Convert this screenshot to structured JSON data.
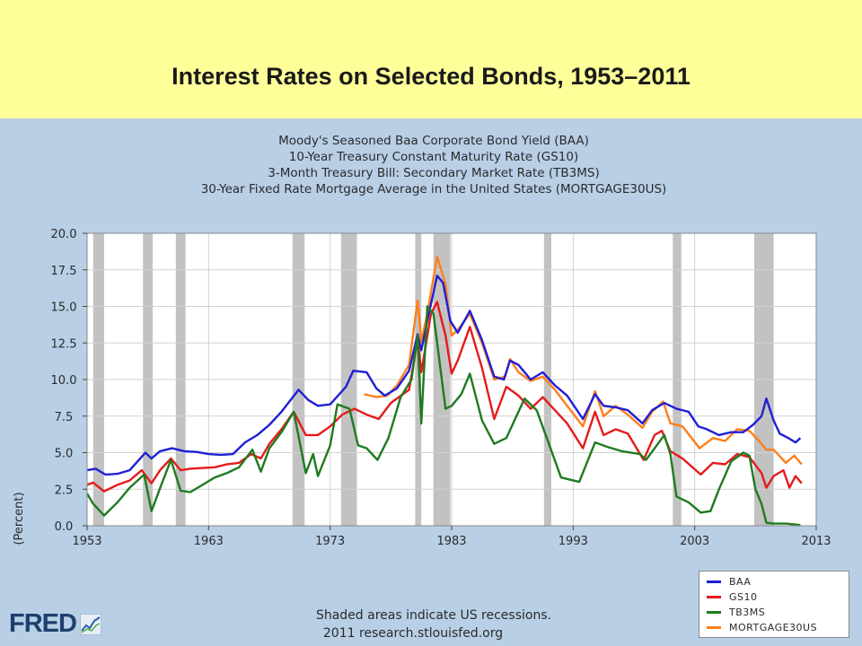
{
  "slide": {
    "title": "Interest Rates on Selected Bonds, 1953–2011"
  },
  "branding": {
    "logo_text": "FRED",
    "logo_icon": "mini-line-chart-icon"
  },
  "colors": {
    "panel_bg": "#b8cfe6",
    "plot_bg": "#ffffff",
    "recession": "#c2c2c2",
    "BAA": "#1f1fd6",
    "GS10": "#e61a1a",
    "TB3MS": "#1f7a1f",
    "MORTGAGE30US": "#ff7f1a"
  },
  "chart_data": {
    "type": "line",
    "title_lines": [
      "Moody's Seasoned Baa Corporate Bond Yield (BAA)",
      "10-Year Treasury Constant Maturity Rate (GS10)",
      "3-Month Treasury Bill: Secondary Market Rate (TB3MS)",
      "30-Year Fixed Rate Mortgage Average in the United States (MORTGAGE30US)"
    ],
    "ylabel": "(Percent)",
    "xlabel": "",
    "xlim": [
      1953,
      2013
    ],
    "ylim": [
      0,
      20
    ],
    "x_ticks": [
      1953,
      1963,
      1973,
      1983,
      1993,
      2003,
      2013
    ],
    "x_tick_labels": [
      "1953",
      "1963",
      "1973",
      "1983",
      "1993",
      "2003",
      "2013"
    ],
    "y_ticks": [
      0,
      2.5,
      5,
      7.5,
      10,
      12.5,
      15,
      17.5,
      20
    ],
    "y_tick_labels": [
      "0.0",
      "2.5",
      "5.0",
      "7.5",
      "10.0",
      "12.5",
      "15.0",
      "17.5",
      "20.0"
    ],
    "grid": true,
    "legend_position": "bottom-right",
    "annotation": "Shaded areas indicate US recessions.",
    "source": "2011 research.stlouisfed.org",
    "recessions": [
      [
        1953.5,
        1954.4
      ],
      [
        1957.6,
        1958.4
      ],
      [
        1960.3,
        1961.1
      ],
      [
        1969.9,
        1970.9
      ],
      [
        1973.9,
        1975.2
      ],
      [
        1980.0,
        1980.5
      ],
      [
        1981.5,
        1982.9
      ],
      [
        1990.6,
        1991.2
      ],
      [
        2001.2,
        2001.9
      ],
      [
        2007.9,
        2009.5
      ]
    ],
    "series": [
      {
        "name": "BAA",
        "points": [
          [
            1953,
            3.8
          ],
          [
            1953.7,
            3.9
          ],
          [
            1954.5,
            3.5
          ],
          [
            1955.5,
            3.55
          ],
          [
            1956.5,
            3.8
          ],
          [
            1957.8,
            5.0
          ],
          [
            1958.3,
            4.6
          ],
          [
            1959,
            5.1
          ],
          [
            1960,
            5.3
          ],
          [
            1961,
            5.1
          ],
          [
            1962,
            5.05
          ],
          [
            1963,
            4.9
          ],
          [
            1964,
            4.85
          ],
          [
            1965,
            4.9
          ],
          [
            1966,
            5.7
          ],
          [
            1967,
            6.2
          ],
          [
            1968,
            6.9
          ],
          [
            1969,
            7.8
          ],
          [
            1970.4,
            9.3
          ],
          [
            1971.2,
            8.6
          ],
          [
            1972,
            8.2
          ],
          [
            1973,
            8.3
          ],
          [
            1974.3,
            9.5
          ],
          [
            1974.9,
            10.6
          ],
          [
            1976,
            10.5
          ],
          [
            1976.8,
            9.4
          ],
          [
            1977.5,
            8.9
          ],
          [
            1978.5,
            9.4
          ],
          [
            1979.5,
            10.6
          ],
          [
            1980.2,
            13.1
          ],
          [
            1980.5,
            12.0
          ],
          [
            1981,
            14.0
          ],
          [
            1981.8,
            17.1
          ],
          [
            1982.3,
            16.6
          ],
          [
            1982.9,
            14.0
          ],
          [
            1983.5,
            13.2
          ],
          [
            1984.5,
            14.7
          ],
          [
            1985.5,
            12.7
          ],
          [
            1986.5,
            10.2
          ],
          [
            1987.3,
            10.0
          ],
          [
            1987.8,
            11.3
          ],
          [
            1988.5,
            11.0
          ],
          [
            1989.5,
            10.0
          ],
          [
            1990.5,
            10.5
          ],
          [
            1991.5,
            9.6
          ],
          [
            1992.5,
            8.9
          ],
          [
            1993.8,
            7.3
          ],
          [
            1994.8,
            9.0
          ],
          [
            1995.5,
            8.2
          ],
          [
            1996.5,
            8.1
          ],
          [
            1997.5,
            7.9
          ],
          [
            1998.7,
            7.0
          ],
          [
            1999.5,
            7.9
          ],
          [
            2000.5,
            8.4
          ],
          [
            2001.5,
            8.0
          ],
          [
            2002.5,
            7.8
          ],
          [
            2003.3,
            6.8
          ],
          [
            2004,
            6.6
          ],
          [
            2005,
            6.2
          ],
          [
            2006,
            6.4
          ],
          [
            2007,
            6.4
          ],
          [
            2007.8,
            6.9
          ],
          [
            2008.5,
            7.5
          ],
          [
            2008.9,
            8.7
          ],
          [
            2009.5,
            7.2
          ],
          [
            2010,
            6.3
          ],
          [
            2010.7,
            6.0
          ],
          [
            2011.3,
            5.7
          ],
          [
            2011.7,
            6.0
          ]
        ]
      },
      {
        "name": "GS10",
        "points": [
          [
            1953,
            2.8
          ],
          [
            1953.5,
            2.95
          ],
          [
            1954.4,
            2.35
          ],
          [
            1955.5,
            2.8
          ],
          [
            1956.5,
            3.1
          ],
          [
            1957.5,
            3.8
          ],
          [
            1958.3,
            2.9
          ],
          [
            1959,
            3.8
          ],
          [
            1959.9,
            4.6
          ],
          [
            1960.7,
            3.8
          ],
          [
            1961.5,
            3.9
          ],
          [
            1962.5,
            3.95
          ],
          [
            1963.5,
            4.0
          ],
          [
            1964.5,
            4.2
          ],
          [
            1965.5,
            4.3
          ],
          [
            1966.5,
            4.9
          ],
          [
            1967.3,
            4.6
          ],
          [
            1968,
            5.6
          ],
          [
            1969,
            6.6
          ],
          [
            1970,
            7.8
          ],
          [
            1971,
            6.2
          ],
          [
            1972,
            6.2
          ],
          [
            1973,
            6.8
          ],
          [
            1974,
            7.6
          ],
          [
            1975,
            8.0
          ],
          [
            1976,
            7.6
          ],
          [
            1977,
            7.3
          ],
          [
            1978,
            8.4
          ],
          [
            1979.5,
            9.3
          ],
          [
            1980.2,
            12.8
          ],
          [
            1980.5,
            10.5
          ],
          [
            1981.3,
            14.5
          ],
          [
            1981.8,
            15.3
          ],
          [
            1982.5,
            13.0
          ],
          [
            1983,
            10.4
          ],
          [
            1983.5,
            11.3
          ],
          [
            1984.5,
            13.6
          ],
          [
            1985.5,
            10.8
          ],
          [
            1986.5,
            7.3
          ],
          [
            1987.5,
            9.5
          ],
          [
            1988.5,
            8.9
          ],
          [
            1989.5,
            8.0
          ],
          [
            1990.5,
            8.8
          ],
          [
            1991.5,
            7.9
          ],
          [
            1992.5,
            7.0
          ],
          [
            1993.8,
            5.3
          ],
          [
            1994.8,
            7.8
          ],
          [
            1995.5,
            6.2
          ],
          [
            1996.5,
            6.6
          ],
          [
            1997.5,
            6.3
          ],
          [
            1998.8,
            4.5
          ],
          [
            1999.7,
            6.2
          ],
          [
            2000.3,
            6.5
          ],
          [
            2001,
            5.1
          ],
          [
            2002,
            4.6
          ],
          [
            2003.5,
            3.5
          ],
          [
            2004.5,
            4.3
          ],
          [
            2005.5,
            4.2
          ],
          [
            2006.5,
            4.9
          ],
          [
            2007.5,
            4.7
          ],
          [
            2008.5,
            3.6
          ],
          [
            2008.9,
            2.6
          ],
          [
            2009.5,
            3.4
          ],
          [
            2010.3,
            3.8
          ],
          [
            2010.8,
            2.6
          ],
          [
            2011.3,
            3.4
          ],
          [
            2011.8,
            2.9
          ]
        ]
      },
      {
        "name": "TB3MS",
        "points": [
          [
            1953,
            2.2
          ],
          [
            1953.5,
            1.5
          ],
          [
            1954.4,
            0.7
          ],
          [
            1955.5,
            1.6
          ],
          [
            1956.5,
            2.6
          ],
          [
            1957.7,
            3.5
          ],
          [
            1958.3,
            1.0
          ],
          [
            1959.2,
            3.0
          ],
          [
            1959.9,
            4.5
          ],
          [
            1960.7,
            2.4
          ],
          [
            1961.5,
            2.3
          ],
          [
            1962.5,
            2.8
          ],
          [
            1963.5,
            3.3
          ],
          [
            1964.5,
            3.6
          ],
          [
            1965.5,
            4.0
          ],
          [
            1966.6,
            5.2
          ],
          [
            1967.3,
            3.7
          ],
          [
            1968,
            5.3
          ],
          [
            1969,
            6.4
          ],
          [
            1970,
            7.8
          ],
          [
            1971,
            3.6
          ],
          [
            1971.6,
            4.9
          ],
          [
            1972,
            3.4
          ],
          [
            1973,
            5.5
          ],
          [
            1973.6,
            8.3
          ],
          [
            1974.6,
            8.0
          ],
          [
            1975.3,
            5.5
          ],
          [
            1976,
            5.3
          ],
          [
            1976.9,
            4.5
          ],
          [
            1977.8,
            6.0
          ],
          [
            1978.8,
            8.8
          ],
          [
            1979.7,
            10.0
          ],
          [
            1980.2,
            13.0
          ],
          [
            1980.5,
            7.0
          ],
          [
            1981,
            15.0
          ],
          [
            1981.5,
            14.5
          ],
          [
            1982.5,
            8.0
          ],
          [
            1983,
            8.2
          ],
          [
            1983.8,
            9.0
          ],
          [
            1984.5,
            10.4
          ],
          [
            1985.5,
            7.2
          ],
          [
            1986.5,
            5.6
          ],
          [
            1987.5,
            6.0
          ],
          [
            1989,
            8.7
          ],
          [
            1990,
            7.9
          ],
          [
            1991,
            5.6
          ],
          [
            1992,
            3.3
          ],
          [
            1993.5,
            3.0
          ],
          [
            1994.8,
            5.7
          ],
          [
            1995.8,
            5.4
          ],
          [
            1997,
            5.1
          ],
          [
            1998.5,
            4.9
          ],
          [
            1999,
            4.5
          ],
          [
            2000.5,
            6.2
          ],
          [
            2001,
            4.9
          ],
          [
            2001.5,
            2.0
          ],
          [
            2002.5,
            1.6
          ],
          [
            2003.5,
            0.9
          ],
          [
            2004.3,
            1.0
          ],
          [
            2005,
            2.5
          ],
          [
            2006,
            4.4
          ],
          [
            2007,
            5.0
          ],
          [
            2007.5,
            4.8
          ],
          [
            2008,
            2.5
          ],
          [
            2008.5,
            1.5
          ],
          [
            2008.9,
            0.2
          ],
          [
            2009.5,
            0.15
          ],
          [
            2010.5,
            0.15
          ],
          [
            2011.7,
            0.05
          ]
        ]
      },
      {
        "name": "MORTGAGE30US",
        "points": [
          [
            1975.8,
            9.0
          ],
          [
            1976.8,
            8.8
          ],
          [
            1977.7,
            8.9
          ],
          [
            1978.5,
            9.6
          ],
          [
            1979.5,
            11.0
          ],
          [
            1980.2,
            15.4
          ],
          [
            1980.5,
            12.6
          ],
          [
            1981,
            14.5
          ],
          [
            1981.8,
            18.4
          ],
          [
            1982.5,
            16.5
          ],
          [
            1983,
            13.0
          ],
          [
            1983.5,
            13.4
          ],
          [
            1984.5,
            14.5
          ],
          [
            1985.5,
            12.5
          ],
          [
            1986.5,
            10.0
          ],
          [
            1987.4,
            10.2
          ],
          [
            1987.8,
            11.4
          ],
          [
            1988.5,
            10.5
          ],
          [
            1989.5,
            9.9
          ],
          [
            1990.5,
            10.2
          ],
          [
            1991.5,
            9.3
          ],
          [
            1992.5,
            8.2
          ],
          [
            1993.8,
            6.8
          ],
          [
            1994.8,
            9.2
          ],
          [
            1995.5,
            7.5
          ],
          [
            1996.5,
            8.2
          ],
          [
            1997.5,
            7.6
          ],
          [
            1998.7,
            6.7
          ],
          [
            1999.5,
            7.8
          ],
          [
            2000.4,
            8.5
          ],
          [
            2001,
            7.0
          ],
          [
            2002,
            6.8
          ],
          [
            2003.4,
            5.3
          ],
          [
            2004.5,
            6.0
          ],
          [
            2005.5,
            5.8
          ],
          [
            2006.5,
            6.6
          ],
          [
            2007.5,
            6.5
          ],
          [
            2008.3,
            5.8
          ],
          [
            2008.9,
            5.2
          ],
          [
            2009.5,
            5.2
          ],
          [
            2010.5,
            4.3
          ],
          [
            2011.2,
            4.8
          ],
          [
            2011.8,
            4.2
          ]
        ]
      }
    ]
  }
}
